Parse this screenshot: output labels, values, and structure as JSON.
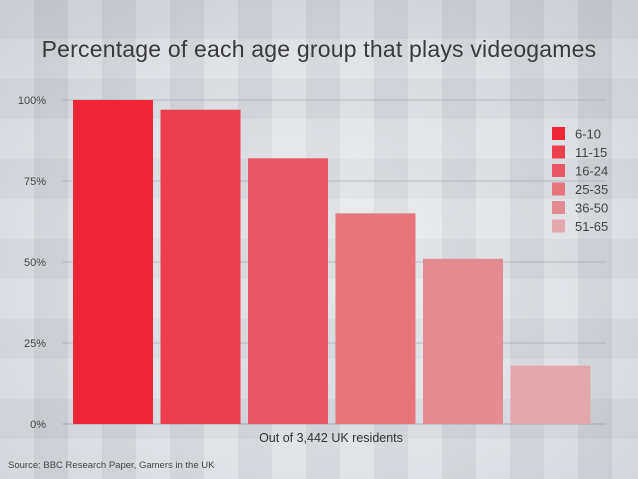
{
  "chart_data": {
    "type": "bar",
    "title": "Percentage of each age group that plays videogames",
    "xlabel": "Out of 3,442 UK residents",
    "ylabel": "",
    "categories": [
      "6-10",
      "11-15",
      "16-24",
      "25-35",
      "36-50",
      "51-65"
    ],
    "values": [
      100,
      97,
      82,
      65,
      51,
      18
    ],
    "yticks": [
      "0%",
      "25%",
      "50%",
      "75%",
      "100%"
    ],
    "ytick_values": [
      0,
      25,
      50,
      75,
      100
    ],
    "ylim": [
      0,
      100
    ],
    "grid": true,
    "legend_position": "top-right",
    "colors": [
      "#ef2637",
      "#ec3e4c",
      "#e85763",
      "#e7737c",
      "#e38b93",
      "#e3a8ae"
    ]
  },
  "source_text": "Source: BBC Research Paper, Gamers in the UK"
}
